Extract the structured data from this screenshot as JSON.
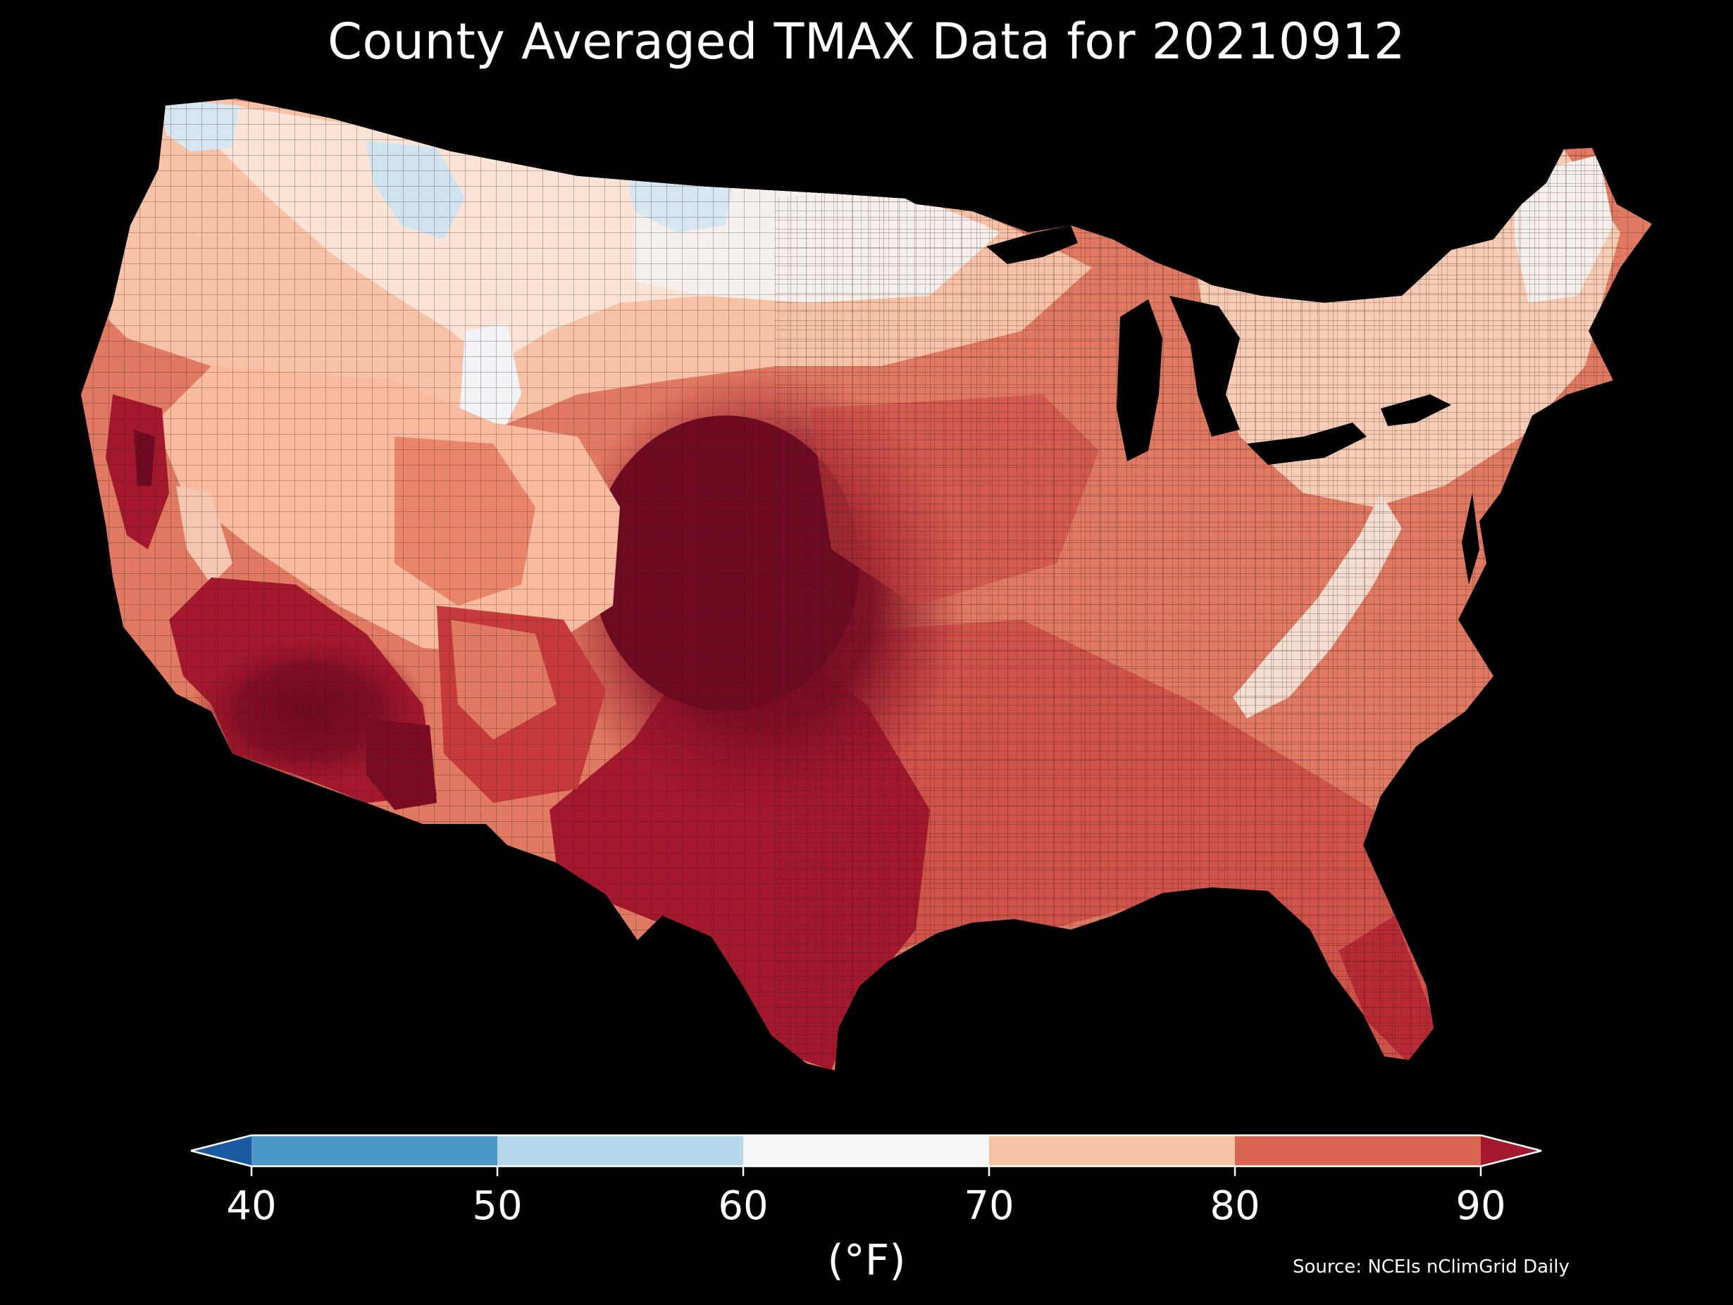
{
  "title": "County Averaged TMAX Data for 20210912",
  "colorbar": {
    "bins": [
      {
        "min": null,
        "max": 40,
        "color": "#1a5aa0"
      },
      {
        "min": 40,
        "max": 50,
        "color": "#4b97c8"
      },
      {
        "min": 50,
        "max": 60,
        "color": "#b6d6ea"
      },
      {
        "min": 60,
        "max": 70,
        "color": "#f6f6f6"
      },
      {
        "min": 70,
        "max": 80,
        "color": "#f8c2a6"
      },
      {
        "min": 80,
        "max": 90,
        "color": "#dc6653"
      },
      {
        "min": 90,
        "max": null,
        "color": "#a3182c"
      }
    ],
    "ticks": [
      "40",
      "50",
      "60",
      "70",
      "80",
      "90"
    ],
    "unit": "(°F)"
  },
  "source": "Source: NCEIs nClimGrid Daily",
  "palette": {
    "background": "#000000",
    "deep_red": "#6e0a22",
    "dark_red": "#a3182c",
    "red": "#c0303a",
    "coral": "#dc6653",
    "salmon": "#f8c2a6",
    "near_white": "#f6f6f6",
    "light_blue": "#cfe3f0",
    "county_line": "#3a1515"
  }
}
